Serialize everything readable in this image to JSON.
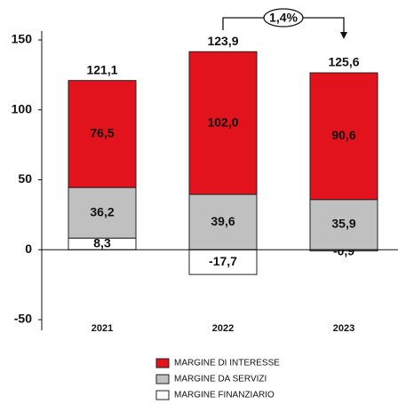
{
  "chart_data": {
    "type": "stacked_bar",
    "categories": [
      "2021",
      "2022",
      "2023"
    ],
    "series": [
      {
        "name": "MARGINE FINANZIARIO",
        "color": "#ffffff",
        "values": [
          8.3,
          -17.7,
          -0.9
        ],
        "value_labels": [
          "8,3",
          "-17,7",
          "-0,9"
        ]
      },
      {
        "name": "MARGINE DA SERVIZI",
        "color": "#c0c0c0",
        "values": [
          36.2,
          39.6,
          35.9
        ],
        "value_labels": [
          "36,2",
          "39,6",
          "35,9"
        ]
      },
      {
        "name": "MARGINE DI INTERESSE",
        "color": "#e3131e",
        "values": [
          76.5,
          102.0,
          90.6
        ],
        "value_labels": [
          "76,5",
          "102,0",
          "90,6"
        ]
      }
    ],
    "totals": [
      121.1,
      123.9,
      125.6
    ],
    "total_labels": [
      "121,1",
      "123,9",
      "125,6"
    ],
    "annotation": "1,4%",
    "ylim": [
      -50,
      150
    ],
    "yticks": [
      -50,
      0,
      50,
      100,
      150
    ]
  }
}
